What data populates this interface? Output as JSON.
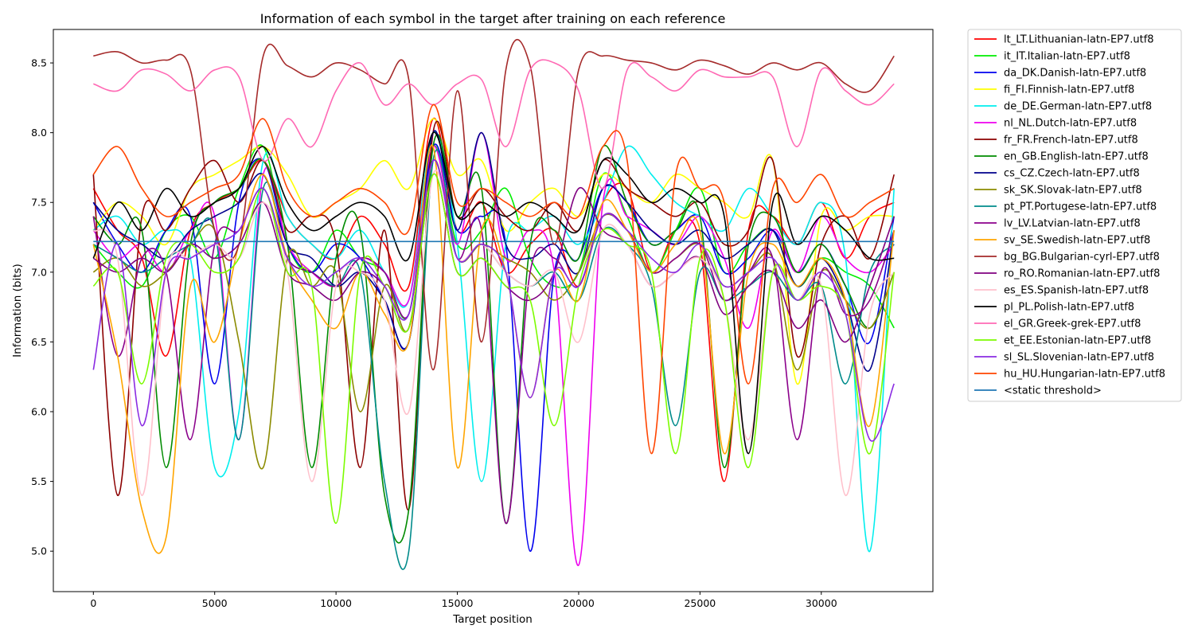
{
  "chart_data": {
    "type": "line",
    "title": "Information of each symbol in the target after training on each reference",
    "xlabel": "Target position",
    "ylabel": "Information (bits)",
    "xlim": [
      -1650,
      34600
    ],
    "ylim": [
      4.71,
      8.74
    ],
    "xticks": [
      0,
      5000,
      10000,
      15000,
      20000,
      25000,
      30000
    ],
    "yticks": [
      5.0,
      5.5,
      6.0,
      6.5,
      7.0,
      7.5,
      8.0,
      8.5
    ],
    "grid": false,
    "legend_position": "outside right",
    "x": [
      0,
      1000,
      2000,
      3000,
      4000,
      5000,
      6000,
      7000,
      8000,
      9000,
      10000,
      11000,
      12000,
      13000,
      14000,
      15000,
      16000,
      17000,
      18000,
      19000,
      20000,
      21000,
      22000,
      23000,
      24000,
      25000,
      26000,
      27000,
      28000,
      29000,
      30000,
      31000,
      32000,
      33000
    ],
    "series": [
      {
        "name": "lt_LT.Lithuanian-latn-EP7.utf8",
        "color": "#ff0000",
        "values": [
          7.6,
          7.3,
          7.1,
          6.4,
          7.3,
          7.5,
          7.6,
          7.8,
          7.4,
          7.2,
          7.1,
          7.4,
          7.2,
          6.9,
          8.1,
          7.3,
          7.5,
          7.0,
          7.2,
          7.3,
          6.9,
          7.5,
          7.6,
          7.0,
          7.3,
          7.2,
          5.5,
          7.3,
          7.4,
          7.2,
          7.5,
          7.1,
          7.4,
          7.5
        ]
      },
      {
        "name": "it_IT.Italian-latn-EP7.utf8",
        "color": "#00ee00",
        "values": [
          7.2,
          7.0,
          6.9,
          7.3,
          7.4,
          7.1,
          7.6,
          7.9,
          7.2,
          7.0,
          7.3,
          7.1,
          7.0,
          6.7,
          7.9,
          7.2,
          7.3,
          7.6,
          7.1,
          6.9,
          7.0,
          7.7,
          7.4,
          7.0,
          7.3,
          7.6,
          7.0,
          7.2,
          7.3,
          6.9,
          7.1,
          7.0,
          6.9,
          6.6
        ]
      },
      {
        "name": "da_DK.Danish-latn-EP7.utf8",
        "color": "#0000ee",
        "values": [
          7.5,
          7.2,
          7.0,
          7.3,
          7.4,
          6.2,
          7.5,
          7.8,
          7.2,
          7.0,
          7.2,
          7.1,
          6.8,
          6.5,
          7.9,
          7.3,
          7.4,
          7.2,
          5.0,
          7.0,
          7.1,
          7.6,
          7.5,
          7.2,
          7.3,
          7.4,
          7.0,
          7.1,
          7.3,
          7.0,
          7.2,
          6.9,
          6.5,
          7.4
        ]
      },
      {
        "name": "fi_FI.Finnish-latn-EP7.utf8",
        "color": "#ffff00",
        "values": [
          7.3,
          7.5,
          7.4,
          7.2,
          7.6,
          7.7,
          7.8,
          7.9,
          7.7,
          7.4,
          7.5,
          7.6,
          7.8,
          7.6,
          8.1,
          7.7,
          7.8,
          7.3,
          7.5,
          7.6,
          7.4,
          7.7,
          7.6,
          7.5,
          7.7,
          7.6,
          7.5,
          7.4,
          7.8,
          6.2,
          7.4,
          7.3,
          7.4,
          7.4
        ]
      },
      {
        "name": "de_DE.German-latn-EP7.utf8",
        "color": "#00eeee",
        "values": [
          7.3,
          7.4,
          7.2,
          7.3,
          7.1,
          5.6,
          6.0,
          7.8,
          7.4,
          7.2,
          7.1,
          7.3,
          7.0,
          6.8,
          8.0,
          7.2,
          5.5,
          7.2,
          7.3,
          7.4,
          7.2,
          7.5,
          7.9,
          7.7,
          7.5,
          7.4,
          7.3,
          7.6,
          7.4,
          7.2,
          7.5,
          7.1,
          5.0,
          7.6
        ]
      },
      {
        "name": "nl_NL.Dutch-latn-EP7.utf8",
        "color": "#ee00ee",
        "values": [
          7.3,
          7.1,
          7.2,
          7.0,
          7.3,
          7.4,
          5.8,
          7.7,
          7.2,
          7.0,
          6.9,
          7.1,
          7.0,
          6.8,
          7.9,
          7.2,
          8.0,
          7.1,
          7.3,
          7.0,
          4.9,
          7.5,
          7.4,
          7.3,
          7.2,
          7.4,
          7.1,
          6.6,
          7.3,
          7.0,
          7.4,
          7.1,
          7.0,
          7.2
        ]
      },
      {
        "name": "fr_FR.French-latn-EP7.utf8",
        "color": "#8b0000",
        "values": [
          7.7,
          5.4,
          7.4,
          7.3,
          7.6,
          7.8,
          7.5,
          7.8,
          7.3,
          7.4,
          7.2,
          5.6,
          7.3,
          5.3,
          8.0,
          7.4,
          7.6,
          7.4,
          7.3,
          7.5,
          7.3,
          7.8,
          7.6,
          7.5,
          7.4,
          7.5,
          7.2,
          7.3,
          7.8,
          6.4,
          7.2,
          7.4,
          7.1,
          7.7
        ]
      },
      {
        "name": "en_GB.English-latn-EP7.utf8",
        "color": "#008b00",
        "values": [
          7.4,
          7.2,
          7.3,
          5.6,
          7.2,
          7.5,
          7.6,
          7.8,
          7.2,
          5.6,
          7.1,
          7.3,
          5.4,
          5.3,
          7.9,
          7.4,
          7.6,
          5.2,
          7.2,
          7.3,
          7.1,
          7.9,
          7.5,
          7.2,
          7.3,
          7.4,
          5.6,
          7.2,
          7.4,
          7.0,
          7.2,
          6.9,
          6.6,
          7.0
        ]
      },
      {
        "name": "cs_CZ.Czech-latn-EP7.utf8",
        "color": "#00008b",
        "values": [
          7.5,
          7.3,
          7.2,
          7.1,
          7.3,
          7.4,
          7.5,
          7.7,
          7.2,
          7.1,
          6.9,
          7.0,
          6.8,
          6.5,
          8.0,
          7.3,
          8.0,
          7.2,
          7.1,
          7.2,
          7.0,
          7.6,
          7.5,
          7.3,
          7.2,
          7.3,
          7.1,
          7.2,
          7.3,
          6.9,
          7.1,
          6.8,
          6.3,
          7.3
        ]
      },
      {
        "name": "sk_SK.Slovak-latn-EP7.utf8",
        "color": "#8b8b00",
        "values": [
          7.0,
          7.1,
          6.9,
          7.0,
          7.2,
          7.3,
          6.5,
          5.6,
          7.1,
          6.9,
          7.0,
          6.0,
          6.9,
          6.6,
          7.8,
          7.1,
          7.2,
          7.1,
          7.0,
          6.8,
          7.0,
          7.4,
          7.3,
          7.0,
          7.1,
          7.2,
          6.9,
          7.0,
          7.1,
          6.3,
          7.0,
          6.8,
          6.6,
          7.0
        ]
      },
      {
        "name": "pt_PT.Portugese-latn-EP7.utf8",
        "color": "#008b8b",
        "values": [
          7.2,
          7.1,
          7.0,
          7.1,
          7.2,
          7.3,
          5.8,
          7.6,
          7.1,
          7.0,
          6.9,
          7.0,
          5.5,
          5.0,
          7.8,
          7.1,
          7.2,
          7.0,
          6.9,
          7.0,
          6.8,
          7.3,
          7.2,
          6.9,
          5.9,
          7.0,
          6.8,
          6.9,
          7.0,
          6.8,
          6.9,
          6.2,
          7.0,
          7.2
        ]
      },
      {
        "name": "lv_LV.Latvian-latn-EP7.utf8",
        "color": "#8b008b",
        "values": [
          7.4,
          6.4,
          7.1,
          7.0,
          5.8,
          7.2,
          7.3,
          7.6,
          7.1,
          7.0,
          6.9,
          7.1,
          7.0,
          6.7,
          7.8,
          7.1,
          7.3,
          5.2,
          7.0,
          7.1,
          6.9,
          7.4,
          7.3,
          7.0,
          7.1,
          7.2,
          6.8,
          7.0,
          7.1,
          5.8,
          7.0,
          6.7,
          6.8,
          7.3
        ]
      },
      {
        "name": "sv_SE.Swedish-latn-EP7.utf8",
        "color": "#ffa500",
        "values": [
          7.2,
          6.4,
          5.3,
          5.1,
          6.9,
          6.5,
          7.2,
          7.7,
          7.1,
          6.8,
          6.6,
          7.0,
          6.7,
          6.5,
          7.9,
          5.6,
          7.3,
          7.0,
          6.1,
          7.0,
          6.8,
          7.5,
          7.3,
          7.0,
          7.2,
          7.3,
          5.7,
          7.0,
          7.2,
          6.9,
          7.1,
          6.8,
          5.9,
          7.3
        ]
      },
      {
        "name": "bg_BG.Bulgarian-cyrl-EP7.utf8",
        "color": "#a52a2a",
        "values": [
          8.55,
          8.58,
          8.5,
          8.52,
          8.45,
          7.3,
          7.2,
          8.55,
          8.48,
          8.4,
          8.5,
          8.45,
          8.35,
          8.38,
          6.3,
          8.3,
          6.5,
          8.45,
          8.48,
          7.2,
          8.45,
          8.55,
          8.52,
          8.5,
          8.45,
          8.52,
          8.48,
          8.42,
          8.5,
          8.45,
          8.5,
          8.35,
          8.3,
          8.55
        ]
      },
      {
        "name": "ro_RO.Romanian-latn-EP7.utf8",
        "color": "#800080",
        "values": [
          7.1,
          7.0,
          7.1,
          7.0,
          7.2,
          7.1,
          7.2,
          7.5,
          7.0,
          6.9,
          6.8,
          7.0,
          6.9,
          6.6,
          7.7,
          7.0,
          7.1,
          6.9,
          6.8,
          7.0,
          7.6,
          7.3,
          7.2,
          6.9,
          7.0,
          7.1,
          6.7,
          6.9,
          7.0,
          6.6,
          6.8,
          6.5,
          6.9,
          7.4
        ]
      },
      {
        "name": "es_ES.Spanish-latn-EP7.utf8",
        "color": "#ffc0cb",
        "values": [
          7.3,
          7.1,
          5.4,
          7.0,
          7.1,
          7.2,
          7.1,
          7.5,
          7.0,
          5.5,
          6.9,
          7.0,
          6.8,
          6.0,
          7.7,
          7.1,
          7.2,
          7.0,
          6.9,
          7.0,
          6.5,
          7.3,
          7.2,
          6.9,
          7.0,
          7.1,
          6.8,
          5.8,
          7.0,
          6.8,
          6.9,
          5.4,
          6.7,
          7.0
        ]
      },
      {
        "name": "pl_PL.Polish-latn-EP7.utf8",
        "color": "#000000",
        "values": [
          7.1,
          7.5,
          7.3,
          7.6,
          7.4,
          7.5,
          7.6,
          7.9,
          7.5,
          7.3,
          7.4,
          7.5,
          7.4,
          7.1,
          8.0,
          7.4,
          7.5,
          7.4,
          7.5,
          7.4,
          7.3,
          7.8,
          7.7,
          7.5,
          7.6,
          7.5,
          7.4,
          5.7,
          7.5,
          7.2,
          7.4,
          7.3,
          7.1,
          7.1
        ]
      },
      {
        "name": "el_GR.Greek-grek-EP7.utf8",
        "color": "#ff69b4",
        "values": [
          8.35,
          8.3,
          8.45,
          8.42,
          8.3,
          8.45,
          8.4,
          7.8,
          8.1,
          7.9,
          8.3,
          8.5,
          8.2,
          8.35,
          8.2,
          8.35,
          8.38,
          7.9,
          8.45,
          8.5,
          8.3,
          7.6,
          8.45,
          8.4,
          8.3,
          8.45,
          8.4,
          8.4,
          8.4,
          7.9,
          8.45,
          8.3,
          8.2,
          8.35
        ]
      },
      {
        "name": "et_EE.Estonian-latn-EP7.utf8",
        "color": "#7cfc00",
        "values": [
          6.9,
          7.0,
          6.2,
          7.1,
          7.2,
          7.0,
          7.1,
          7.6,
          7.0,
          6.9,
          5.2,
          7.0,
          6.9,
          6.6,
          7.7,
          7.0,
          7.1,
          6.9,
          6.8,
          5.9,
          6.9,
          7.3,
          7.2,
          7.0,
          5.7,
          7.1,
          6.8,
          5.6,
          7.0,
          6.8,
          6.9,
          6.7,
          5.7,
          7.0
        ]
      },
      {
        "name": "sl_SL.Slovenian-latn-EP7.utf8",
        "color": "#8a2be2",
        "values": [
          6.3,
          7.2,
          5.9,
          7.0,
          7.1,
          7.2,
          7.3,
          7.6,
          7.1,
          6.9,
          7.0,
          7.1,
          6.9,
          6.7,
          7.8,
          7.1,
          7.2,
          7.0,
          6.1,
          7.0,
          6.9,
          7.4,
          7.3,
          7.1,
          7.0,
          7.2,
          6.9,
          7.0,
          7.1,
          6.8,
          7.0,
          6.7,
          5.8,
          6.2
        ]
      },
      {
        "name": "hu_HU.Hungarian-latn-EP7.utf8",
        "color": "#ff4500",
        "values": [
          7.7,
          7.9,
          7.6,
          7.4,
          7.5,
          7.6,
          7.7,
          8.1,
          7.6,
          7.4,
          7.5,
          7.6,
          7.5,
          7.3,
          8.2,
          7.5,
          7.6,
          7.5,
          7.4,
          7.5,
          7.4,
          7.9,
          7.8,
          5.7,
          7.7,
          7.6,
          7.5,
          6.2,
          7.6,
          7.5,
          7.7,
          7.4,
          7.5,
          7.6
        ]
      },
      {
        "name": "<static threshold>",
        "color": "#1f77b4",
        "values": [
          7.22,
          7.22,
          7.22,
          7.22,
          7.22,
          7.22,
          7.22,
          7.22,
          7.22,
          7.22,
          7.22,
          7.22,
          7.22,
          7.22,
          7.22,
          7.22,
          7.22,
          7.22,
          7.22,
          7.22,
          7.22,
          7.22,
          7.22,
          7.22,
          7.22,
          7.22,
          7.22,
          7.22,
          7.22,
          7.22,
          7.22,
          7.22,
          7.22,
          7.22
        ]
      }
    ]
  }
}
